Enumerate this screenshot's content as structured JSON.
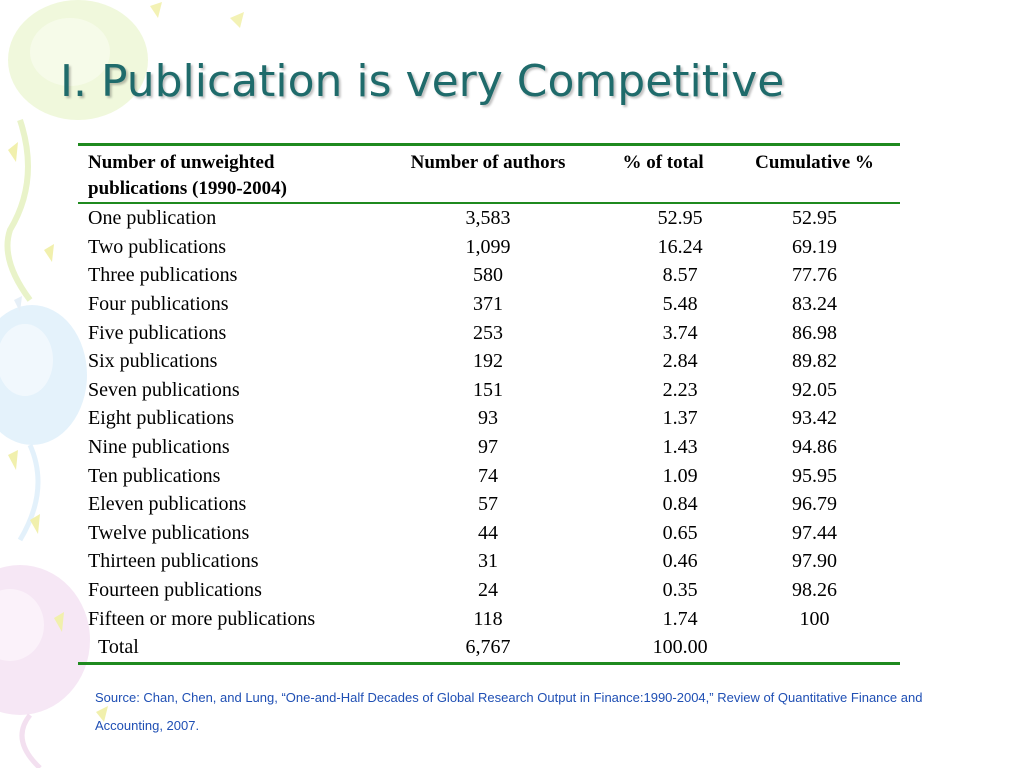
{
  "slide": {
    "title": "I. Publication is very Competitive",
    "source": "Source: Chan, Chen, and Lung, “One-and-Half Decades of Global Research Output in Finance:1990-2004,”  Review of Quantitative Finance and Accounting, 2007."
  },
  "table": {
    "headers": {
      "label": "Number of unweighted publications (1990-2004)",
      "authors": "Number of authors",
      "pct": "% of total",
      "cum": "Cumulative %"
    },
    "rows": [
      {
        "label": "One publication",
        "authors": "3,583",
        "pct": "52.95",
        "cum": "52.95"
      },
      {
        "label": "Two publications",
        "authors": "1,099",
        "pct": "16.24",
        "cum": "69.19"
      },
      {
        "label": "Three publications",
        "authors": "580",
        "pct": "8.57",
        "cum": "77.76"
      },
      {
        "label": "Four publications",
        "authors": "371",
        "pct": "5.48",
        "cum": "83.24"
      },
      {
        "label": "Five publications",
        "authors": "253",
        "pct": "3.74",
        "cum": "86.98"
      },
      {
        "label": "Six publications",
        "authors": "192",
        "pct": "2.84",
        "cum": "89.82"
      },
      {
        "label": "Seven publications",
        "authors": "151",
        "pct": "2.23",
        "cum": "92.05"
      },
      {
        "label": "Eight publications",
        "authors": "93",
        "pct": "1.37",
        "cum": "93.42"
      },
      {
        "label": "Nine publications",
        "authors": "97",
        "pct": "1.43",
        "cum": "94.86"
      },
      {
        "label": "Ten publications",
        "authors": "74",
        "pct": "1.09",
        "cum": "95.95"
      },
      {
        "label": "Eleven publications",
        "authors": "57",
        "pct": "0.84",
        "cum": "96.79"
      },
      {
        "label": "Twelve publications",
        "authors": "44",
        "pct": "0.65",
        "cum": "97.44"
      },
      {
        "label": "Thirteen publications",
        "authors": "31",
        "pct": "0.46",
        "cum": "97.90"
      },
      {
        "label": "Fourteen publications",
        "authors": "24",
        "pct": "0.35",
        "cum": "98.26"
      },
      {
        "label": "Fifteen or more publications",
        "authors": "118",
        "pct": "1.74",
        "cum": "100"
      },
      {
        "label": "Total",
        "authors": "6,767",
        "pct": "100.00",
        "cum": ""
      }
    ]
  },
  "colors": {
    "title": "#1f6b6b",
    "rule": "#1f8a1f",
    "source": "#1f4fb4"
  }
}
